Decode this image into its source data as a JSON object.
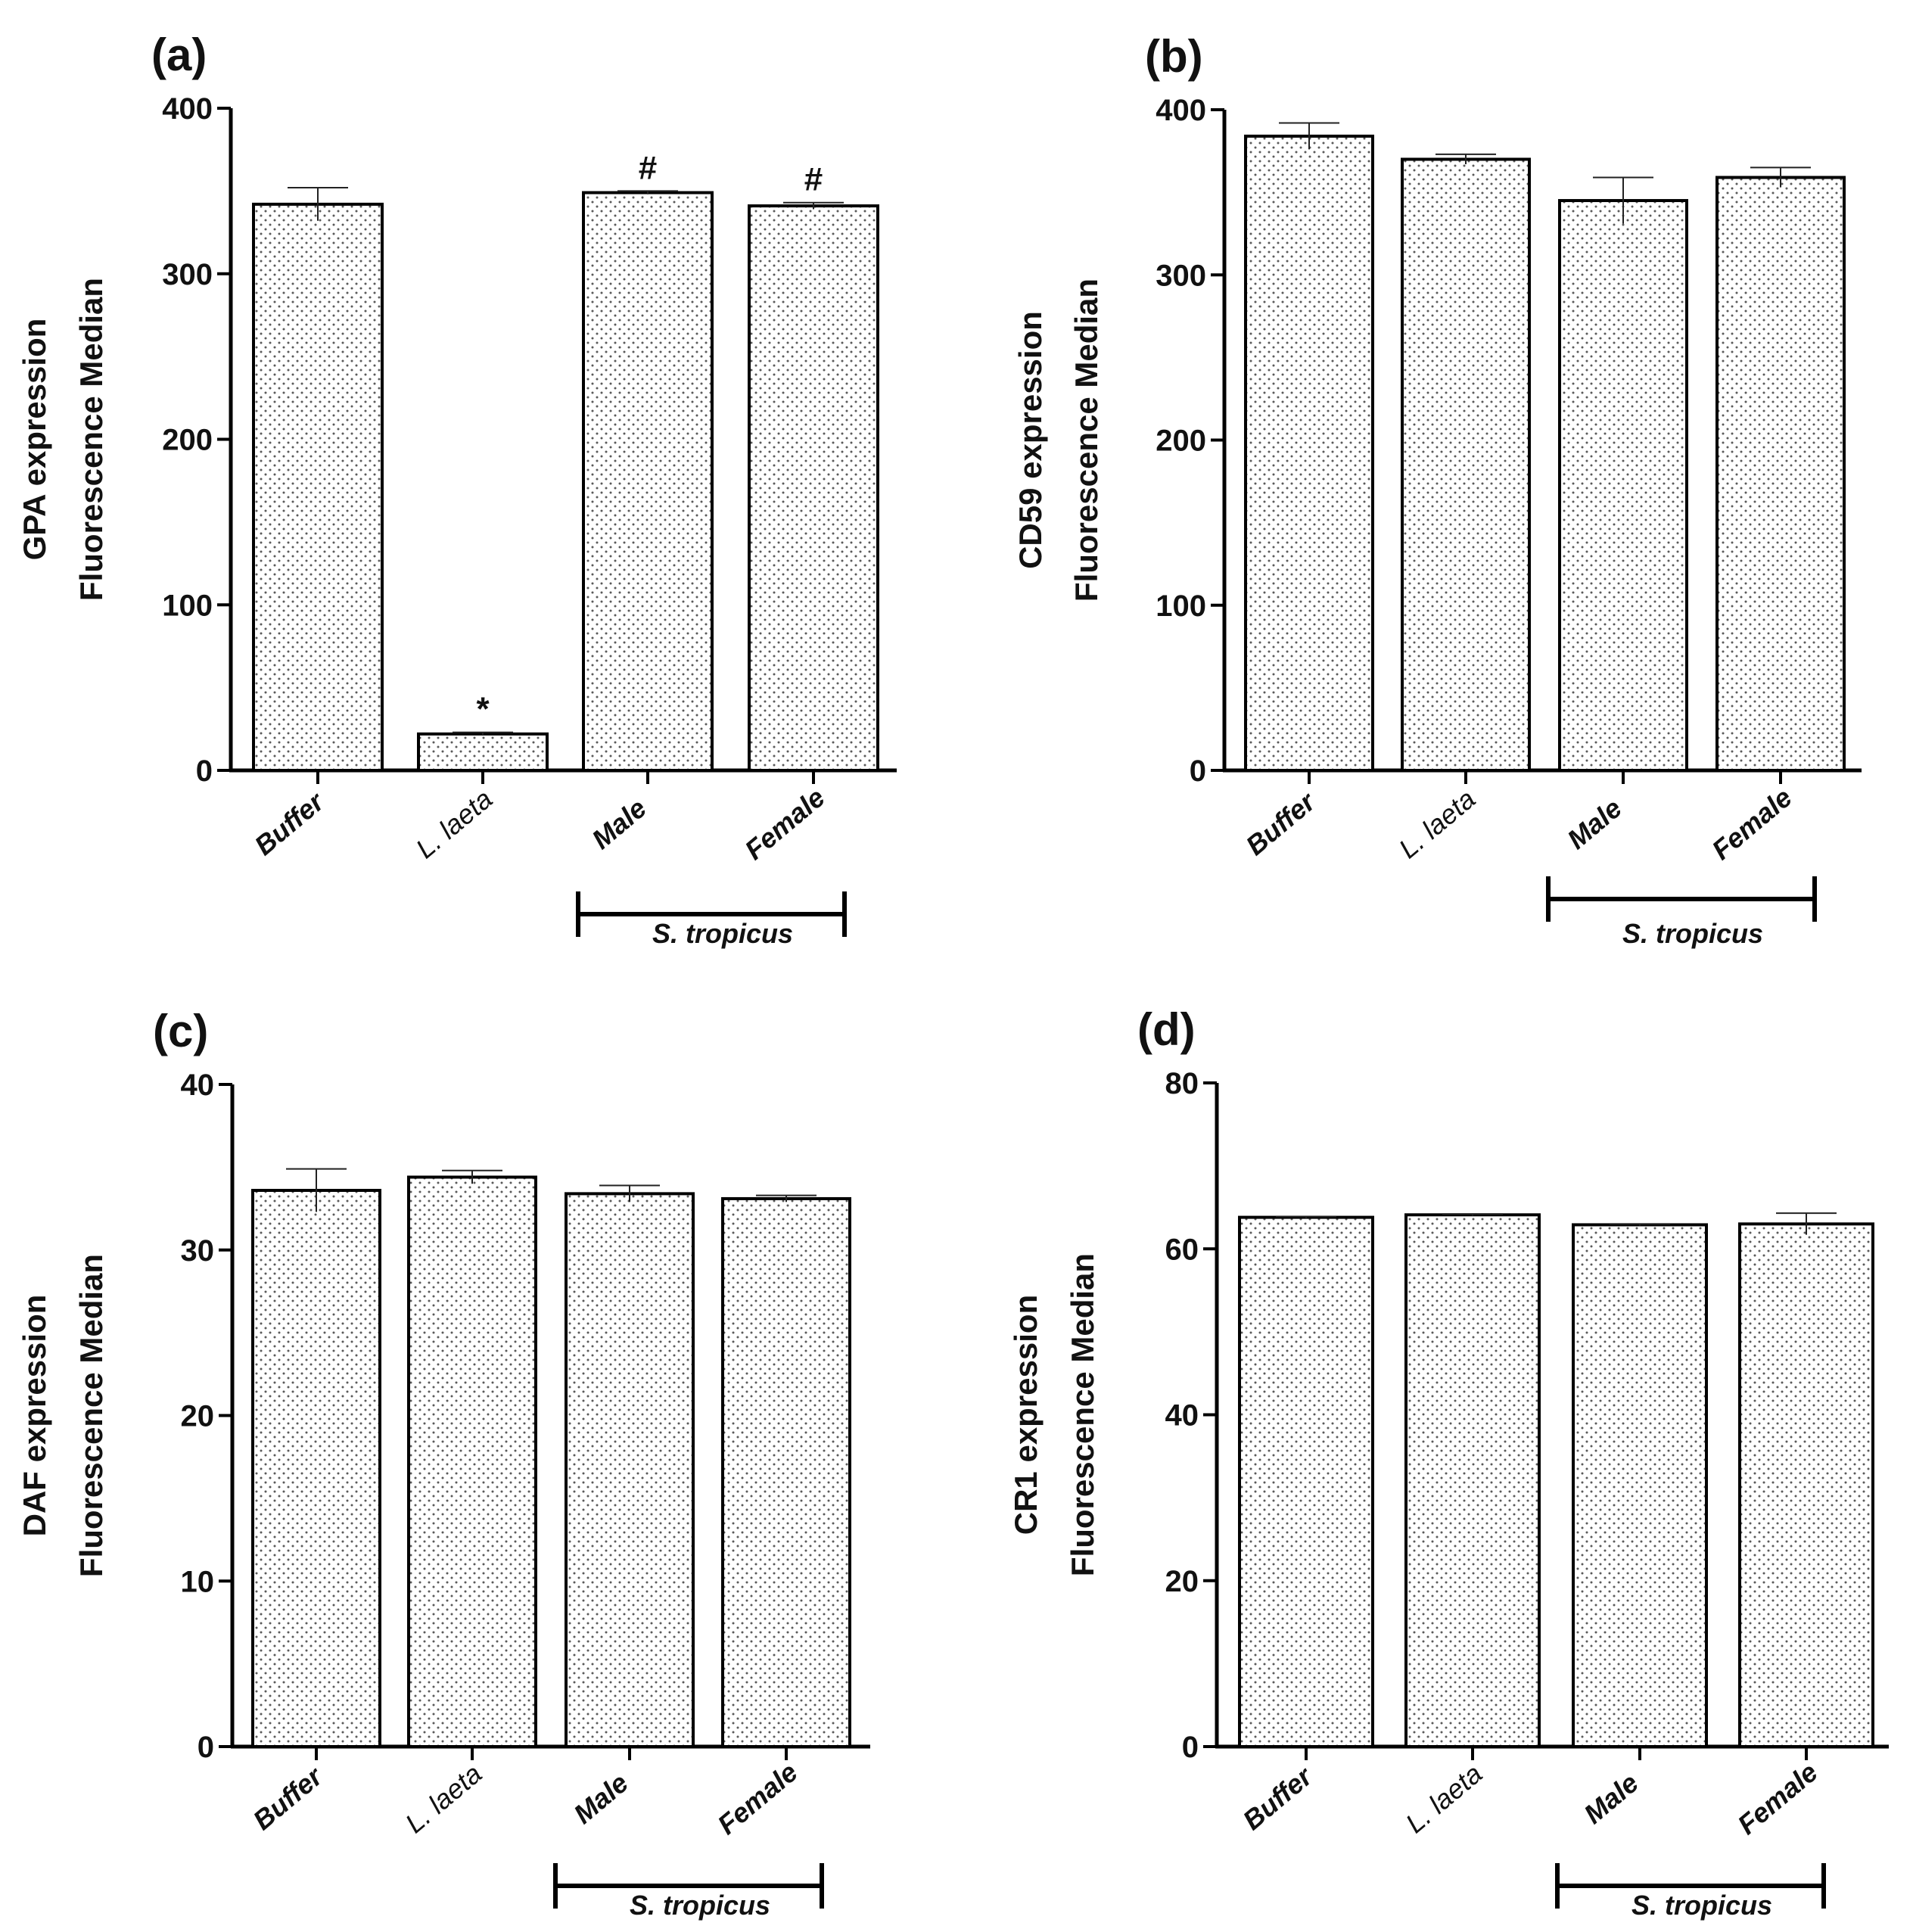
{
  "chart_data": [
    {
      "type": "bar",
      "panel": "(a)",
      "ylabel_lines": [
        "GPA expression",
        "Fluorescence Median"
      ],
      "categories": [
        "Buffer",
        "L. laeta",
        "Male",
        "Female"
      ],
      "values": [
        342,
        22,
        349,
        341
      ],
      "errors": [
        10,
        1,
        1,
        2
      ],
      "annotations": [
        "",
        "*",
        "#",
        "#"
      ],
      "ylim": [
        0,
        400
      ],
      "yticks": [
        0,
        100,
        200,
        300,
        400
      ],
      "group": {
        "label": "S. tropicus",
        "from": 2,
        "to": 3
      }
    },
    {
      "type": "bar",
      "panel": "(b)",
      "ylabel_lines": [
        "CD59 expression",
        "Fluorescence Median"
      ],
      "categories": [
        "Buffer",
        "L. laeta",
        "Male",
        "Female"
      ],
      "values": [
        384,
        370,
        345,
        359
      ],
      "errors": [
        8,
        3,
        14,
        6
      ],
      "annotations": [
        "",
        "",
        "",
        ""
      ],
      "ylim": [
        0,
        400
      ],
      "yticks": [
        0,
        100,
        200,
        300,
        400
      ],
      "group": {
        "label": "S. tropicus",
        "from": 2,
        "to": 3
      }
    },
    {
      "type": "bar",
      "panel": "(c)",
      "ylabel_lines": [
        "DAF expression",
        "Fluorescence Median"
      ],
      "categories": [
        "Buffer",
        "L. laeta",
        "Male",
        "Female"
      ],
      "values": [
        33.6,
        34.4,
        33.4,
        33.1
      ],
      "errors": [
        1.3,
        0.4,
        0.5,
        0.2
      ],
      "annotations": [
        "",
        "",
        "",
        ""
      ],
      "ylim": [
        0,
        40
      ],
      "yticks": [
        0,
        10,
        20,
        30,
        40
      ],
      "group": {
        "label": "S. tropicus",
        "from": 2,
        "to": 3
      }
    },
    {
      "type": "bar",
      "panel": "(d)",
      "ylabel_lines": [
        "CR1 expression",
        "Fluorescence Median"
      ],
      "categories": [
        "Buffer",
        "L. laeta",
        "Male",
        "Female"
      ],
      "values": [
        63.8,
        64.1,
        62.9,
        63.0
      ],
      "errors": [
        0.1,
        0.1,
        0.1,
        1.3
      ],
      "annotations": [
        "",
        "",
        "",
        ""
      ],
      "ylim": [
        0,
        80
      ],
      "yticks": [
        0,
        20,
        40,
        60,
        80
      ],
      "group": {
        "label": "S. tropicus",
        "from": 2,
        "to": 3
      }
    }
  ]
}
